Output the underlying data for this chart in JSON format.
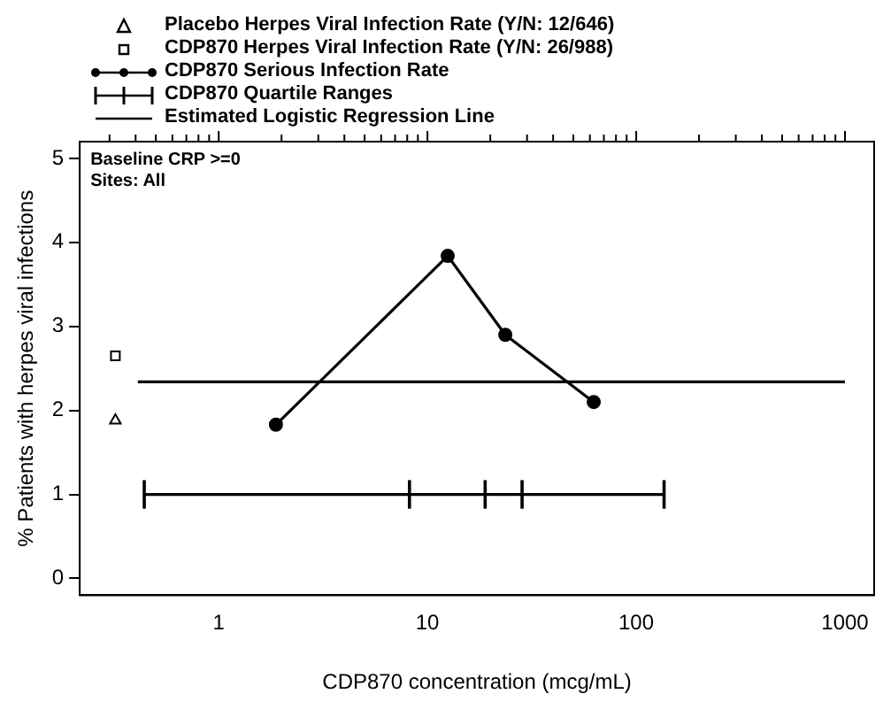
{
  "chart_data": {
    "type": "line",
    "xlabel": "CDP870 concentration (mcg/mL)",
    "ylabel": "% Patients with herpes viral infections",
    "annotations": [
      "Baseline CRP >=0",
      "Sites: All"
    ],
    "log": "x",
    "grid": false,
    "legend": "top",
    "xlim": [
      0.216,
      1380
    ],
    "xticks": [
      {
        "value": 0.3,
        "label": null
      },
      {
        "value": 0.4,
        "label": null
      },
      {
        "value": 0.5,
        "label": null
      },
      {
        "value": 0.6,
        "label": null
      },
      {
        "value": 0.7,
        "label": null
      },
      {
        "value": 0.8,
        "label": null
      },
      {
        "value": 0.9,
        "label": null
      },
      1,
      {
        "value": 2,
        "label": null
      },
      {
        "value": 3,
        "label": null
      },
      {
        "value": 4,
        "label": null
      },
      {
        "value": 5,
        "label": null
      },
      {
        "value": 6,
        "label": null
      },
      {
        "value": 7,
        "label": null
      },
      {
        "value": 8,
        "label": null
      },
      {
        "value": 9,
        "label": null
      },
      10,
      {
        "value": 20,
        "label": null
      },
      {
        "value": 30,
        "label": null
      },
      {
        "value": 40,
        "label": null
      },
      {
        "value": 50,
        "label": null
      },
      {
        "value": 60,
        "label": null
      },
      {
        "value": 70,
        "label": null
      },
      {
        "value": 80,
        "label": null
      },
      {
        "value": 90,
        "label": null
      },
      100,
      {
        "value": 200,
        "label": null
      },
      {
        "value": 300,
        "label": null
      },
      {
        "value": 400,
        "label": null
      },
      {
        "value": 500,
        "label": null
      },
      {
        "value": 600,
        "label": null
      },
      {
        "value": 700,
        "label": null
      },
      {
        "value": 800,
        "label": null
      },
      {
        "value": 900,
        "label": null
      },
      1000
    ],
    "ylim": [
      -0.2,
      5.2
    ],
    "yticks": [
      0,
      1,
      2,
      3,
      4,
      5
    ],
    "series": [
      {
        "name": "Placebo Herpes Viral Infection Rate (Y/N: 12/646)",
        "marker": "triangle",
        "color": "#000000",
        "x": [
          0.32
        ],
        "values": [
          1.88
        ]
      },
      {
        "name": "CDP870 Herpes Viral Infection Rate (Y/N: 26/988)",
        "marker": "square",
        "color": "#000000",
        "x": [
          0.32
        ],
        "values": [
          2.65
        ]
      },
      {
        "name": "CDP870 Serious Infection Rate",
        "marker": "circle",
        "line_style": "solid",
        "color": "#000000",
        "x": [
          1.88,
          12.5,
          23.6,
          62.6
        ],
        "values": [
          1.83,
          3.84,
          2.9,
          2.1
        ]
      },
      {
        "name": "CDP870 Quartile Ranges",
        "marker": "none",
        "line_style": "solid",
        "color": "#000000",
        "x": [
          0.44,
          8.2,
          18.9,
          28.4,
          136
        ],
        "values": [
          1,
          1,
          1,
          1,
          1
        ],
        "errors": [
          0.17,
          0.17,
          0.17,
          0.17,
          0.17
        ]
      },
      {
        "name": "Estimated Logistic Regression Line",
        "marker": "none",
        "line_style": "solid",
        "color": "#000000",
        "x": [
          0.41,
          1000
        ],
        "values": [
          2.34,
          2.34
        ]
      }
    ]
  }
}
